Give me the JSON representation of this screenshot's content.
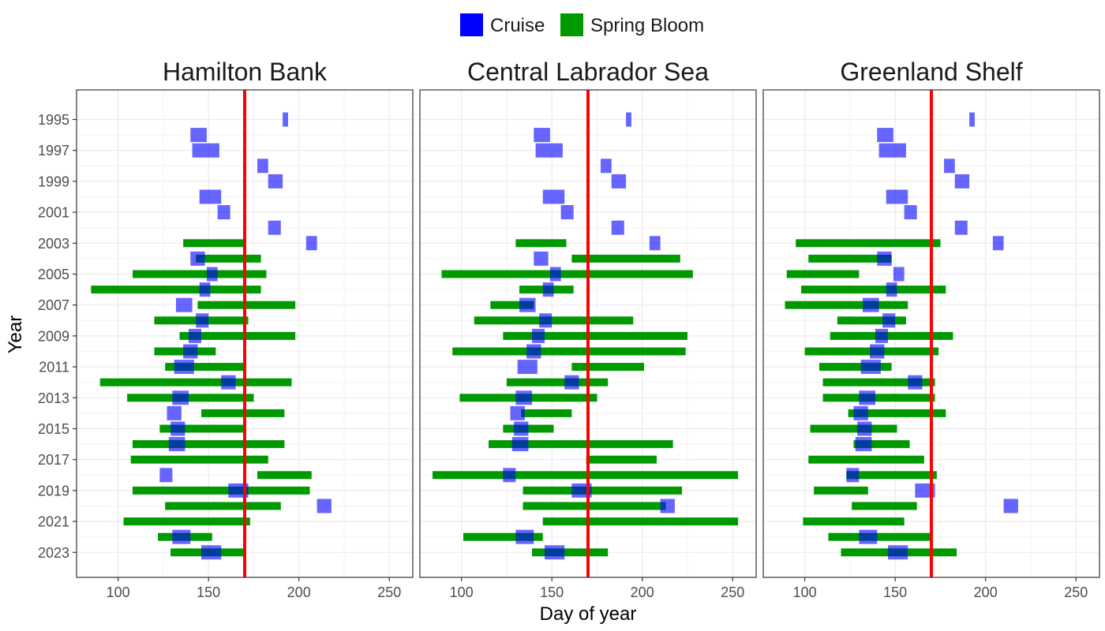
{
  "legend": {
    "position": "top",
    "items": [
      {
        "label": "Cruise",
        "color": "#0000ff"
      },
      {
        "label": "Spring Bloom",
        "color": "#009900"
      }
    ]
  },
  "chart_data": {
    "type": "bar",
    "orientation": "horizontal-range",
    "xlabel": "Day of year",
    "ylabel": "Year",
    "xlim": [
      77,
      263
    ],
    "x_ticks": [
      100,
      150,
      200,
      250
    ],
    "y_tick_labels": [
      "1995",
      "1997",
      "1999",
      "2001",
      "2003",
      "2005",
      "2007",
      "2009",
      "2011",
      "2013",
      "2015",
      "2017",
      "2019",
      "2021",
      "2023"
    ],
    "years": [
      1995,
      1996,
      1997,
      1998,
      1999,
      2000,
      2001,
      2002,
      2003,
      2004,
      2005,
      2006,
      2007,
      2008,
      2009,
      2010,
      2011,
      2012,
      2013,
      2014,
      2015,
      2016,
      2017,
      2018,
      2019,
      2020,
      2021,
      2022,
      2023
    ],
    "reference_line": {
      "x": 170,
      "color": "#ff0000"
    },
    "grid": true,
    "cruise": [
      {
        "year": 1995,
        "start": 191,
        "end": 194
      },
      {
        "year": 1996,
        "start": 140,
        "end": 149
      },
      {
        "year": 1997,
        "start": 141,
        "end": 156
      },
      {
        "year": 1998,
        "start": 177,
        "end": 183
      },
      {
        "year": 1999,
        "start": 183,
        "end": 191
      },
      {
        "year": 2000,
        "start": 145,
        "end": 157
      },
      {
        "year": 2001,
        "start": 155,
        "end": 162
      },
      {
        "year": 2002,
        "start": 183,
        "end": 190
      },
      {
        "year": 2003,
        "start": 204,
        "end": 210
      },
      {
        "year": 2004,
        "start": 140,
        "end": 148
      },
      {
        "year": 2005,
        "start": 149,
        "end": 155
      },
      {
        "year": 2006,
        "start": 145,
        "end": 151
      },
      {
        "year": 2007,
        "start": 132,
        "end": 141
      },
      {
        "year": 2008,
        "start": 143,
        "end": 150
      },
      {
        "year": 2009,
        "start": 139,
        "end": 146
      },
      {
        "year": 2010,
        "start": 136,
        "end": 144
      },
      {
        "year": 2011,
        "start": 131,
        "end": 142
      },
      {
        "year": 2012,
        "start": 157,
        "end": 165
      },
      {
        "year": 2013,
        "start": 130,
        "end": 139
      },
      {
        "year": 2014,
        "start": 127,
        "end": 135
      },
      {
        "year": 2015,
        "start": 129,
        "end": 137
      },
      {
        "year": 2016,
        "start": 128,
        "end": 137
      },
      {
        "year": 2017,
        "start": null,
        "end": null
      },
      {
        "year": 2018,
        "start": 123,
        "end": 130
      },
      {
        "year": 2019,
        "start": 161,
        "end": 172
      },
      {
        "year": 2020,
        "start": 210,
        "end": 218
      },
      {
        "year": 2021,
        "start": null,
        "end": null
      },
      {
        "year": 2022,
        "start": 130,
        "end": 140
      },
      {
        "year": 2023,
        "start": 146,
        "end": 157
      }
    ],
    "panels": [
      {
        "title": "Hamilton Bank",
        "bloom": [
          {
            "year": 2003,
            "start": 136,
            "end": 170
          },
          {
            "year": 2004,
            "start": 143,
            "end": 179
          },
          {
            "year": 2005,
            "start": 108,
            "end": 182
          },
          {
            "year": 2006,
            "start": 85,
            "end": 179
          },
          {
            "year": 2007,
            "start": 144,
            "end": 198
          },
          {
            "year": 2008,
            "start": 120,
            "end": 172
          },
          {
            "year": 2009,
            "start": 134,
            "end": 198
          },
          {
            "year": 2010,
            "start": 120,
            "end": 154
          },
          {
            "year": 2011,
            "start": 126,
            "end": 170
          },
          {
            "year": 2012,
            "start": 90,
            "end": 196
          },
          {
            "year": 2013,
            "start": 105,
            "end": 175
          },
          {
            "year": 2014,
            "start": 146,
            "end": 192
          },
          {
            "year": 2015,
            "start": 123,
            "end": 170
          },
          {
            "year": 2016,
            "start": 108,
            "end": 192
          },
          {
            "year": 2017,
            "start": 107,
            "end": 183
          },
          {
            "year": 2018,
            "start": 177,
            "end": 207
          },
          {
            "year": 2019,
            "start": 108,
            "end": 206
          },
          {
            "year": 2020,
            "start": 126,
            "end": 190
          },
          {
            "year": 2021,
            "start": 103,
            "end": 173
          },
          {
            "year": 2022,
            "start": 122,
            "end": 152
          },
          {
            "year": 2023,
            "start": 129,
            "end": 170
          }
        ]
      },
      {
        "title": "Central Labrador Sea",
        "bloom": [
          {
            "year": 2003,
            "start": 130,
            "end": 158
          },
          {
            "year": 2004,
            "start": 161,
            "end": 221
          },
          {
            "year": 2005,
            "start": 89,
            "end": 228
          },
          {
            "year": 2006,
            "start": 132,
            "end": 162
          },
          {
            "year": 2007,
            "start": 116,
            "end": 140
          },
          {
            "year": 2008,
            "start": 107,
            "end": 195
          },
          {
            "year": 2009,
            "start": 123,
            "end": 225
          },
          {
            "year": 2010,
            "start": 95,
            "end": 224
          },
          {
            "year": 2011,
            "start": 161,
            "end": 201
          },
          {
            "year": 2012,
            "start": 125,
            "end": 181
          },
          {
            "year": 2013,
            "start": 99,
            "end": 175
          },
          {
            "year": 2014,
            "start": 133,
            "end": 161
          },
          {
            "year": 2015,
            "start": 123,
            "end": 151
          },
          {
            "year": 2016,
            "start": 115,
            "end": 217
          },
          {
            "year": 2017,
            "start": 169,
            "end": 208
          },
          {
            "year": 2018,
            "start": 84,
            "end": 253
          },
          {
            "year": 2019,
            "start": 134,
            "end": 222
          },
          {
            "year": 2020,
            "start": 134,
            "end": 213
          },
          {
            "year": 2021,
            "start": 145,
            "end": 253
          },
          {
            "year": 2022,
            "start": 101,
            "end": 145
          },
          {
            "year": 2023,
            "start": 139,
            "end": 181
          }
        ]
      },
      {
        "title": "Greenland Shelf",
        "bloom": [
          {
            "year": 2003,
            "start": 95,
            "end": 175
          },
          {
            "year": 2004,
            "start": 102,
            "end": 148
          },
          {
            "year": 2005,
            "start": 90,
            "end": 130
          },
          {
            "year": 2006,
            "start": 98,
            "end": 178
          },
          {
            "year": 2007,
            "start": 89,
            "end": 157
          },
          {
            "year": 2008,
            "start": 118,
            "end": 156
          },
          {
            "year": 2009,
            "start": 114,
            "end": 182
          },
          {
            "year": 2010,
            "start": 100,
            "end": 174
          },
          {
            "year": 2011,
            "start": 108,
            "end": 148
          },
          {
            "year": 2012,
            "start": 110,
            "end": 172
          },
          {
            "year": 2013,
            "start": 110,
            "end": 172
          },
          {
            "year": 2014,
            "start": 124,
            "end": 178
          },
          {
            "year": 2015,
            "start": 103,
            "end": 151
          },
          {
            "year": 2016,
            "start": 127,
            "end": 158
          },
          {
            "year": 2017,
            "start": 102,
            "end": 166
          },
          {
            "year": 2018,
            "start": 123,
            "end": 173
          },
          {
            "year": 2019,
            "start": 105,
            "end": 135
          },
          {
            "year": 2020,
            "start": 126,
            "end": 162
          },
          {
            "year": 2021,
            "start": 99,
            "end": 155
          },
          {
            "year": 2022,
            "start": 113,
            "end": 170
          },
          {
            "year": 2023,
            "start": 120,
            "end": 184
          }
        ]
      }
    ]
  }
}
